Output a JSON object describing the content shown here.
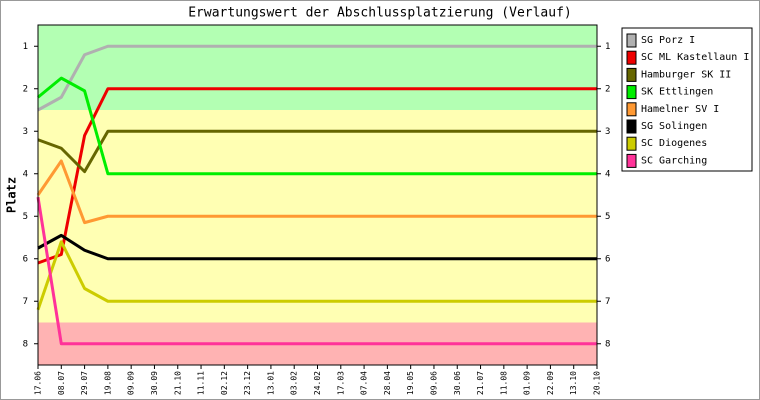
{
  "chart_data": {
    "type": "line",
    "title": "Erwartungswert der Abschlussplatzierung (Verlauf)",
    "y_label": "Platz",
    "categories": [
      "17.06",
      "08.07",
      "29.07",
      "19.08",
      "09.09",
      "30.09",
      "21.10",
      "11.11",
      "02.12",
      "23.12",
      "13.01",
      "03.02",
      "24.02",
      "17.03",
      "07.04",
      "28.04",
      "19.05",
      "09.06",
      "30.06",
      "21.07",
      "11.08",
      "01.09",
      "22.09",
      "13.10",
      "20.10"
    ],
    "ylim": [
      8.5,
      0.5
    ],
    "yticks": [
      1,
      2,
      3,
      4,
      5,
      6,
      7,
      8
    ],
    "zones": [
      {
        "from": 0.5,
        "to": 2.5,
        "color": "#b3ffb3"
      },
      {
        "from": 2.5,
        "to": 7.5,
        "color": "#ffffb3"
      },
      {
        "from": 7.5,
        "to": 8.5,
        "color": "#ffb3b3"
      }
    ],
    "series": [
      {
        "name": "SG Porz I",
        "color": "#b0b0b0",
        "values": [
          2.5,
          2.2,
          1.2,
          1,
          1,
          1,
          1,
          1,
          1,
          1,
          1,
          1,
          1,
          1,
          1,
          1,
          1,
          1,
          1,
          1,
          1,
          1,
          1,
          1,
          1
        ]
      },
      {
        "name": "SC ML Kastellaun I",
        "color": "#ee0000",
        "values": [
          6.1,
          5.9,
          3.1,
          2,
          2,
          2,
          2,
          2,
          2,
          2,
          2,
          2,
          2,
          2,
          2,
          2,
          2,
          2,
          2,
          2,
          2,
          2,
          2,
          2,
          2
        ]
      },
      {
        "name": "Hamburger SK II",
        "color": "#666600",
        "values": [
          3.2,
          3.4,
          3.95,
          3,
          3,
          3,
          3,
          3,
          3,
          3,
          3,
          3,
          3,
          3,
          3,
          3,
          3,
          3,
          3,
          3,
          3,
          3,
          3,
          3,
          3
        ]
      },
      {
        "name": "SK Ettlingen",
        "color": "#00ee00",
        "values": [
          2.2,
          1.75,
          2.05,
          4,
          4,
          4,
          4,
          4,
          4,
          4,
          4,
          4,
          4,
          4,
          4,
          4,
          4,
          4,
          4,
          4,
          4,
          4,
          4,
          4,
          4
        ]
      },
      {
        "name": "Hamelner SV I",
        "color": "#ff9933",
        "values": [
          4.5,
          3.7,
          5.15,
          5,
          5,
          5,
          5,
          5,
          5,
          5,
          5,
          5,
          5,
          5,
          5,
          5,
          5,
          5,
          5,
          5,
          5,
          5,
          5,
          5,
          5
        ]
      },
      {
        "name": "SG Solingen",
        "color": "#000000",
        "values": [
          5.75,
          5.45,
          5.8,
          6,
          6,
          6,
          6,
          6,
          6,
          6,
          6,
          6,
          6,
          6,
          6,
          6,
          6,
          6,
          6,
          6,
          6,
          6,
          6,
          6,
          6
        ]
      },
      {
        "name": "SC Diogenes",
        "color": "#cccc00",
        "values": [
          7.2,
          5.6,
          6.7,
          7,
          7,
          7,
          7,
          7,
          7,
          7,
          7,
          7,
          7,
          7,
          7,
          7,
          7,
          7,
          7,
          7,
          7,
          7,
          7,
          7,
          7
        ]
      },
      {
        "name": "SC Garching",
        "color": "#ff3399",
        "values": [
          4.55,
          8,
          8,
          8,
          8,
          8,
          8,
          8,
          8,
          8,
          8,
          8,
          8,
          8,
          8,
          8,
          8,
          8,
          8,
          8,
          8,
          8,
          8,
          8,
          8
        ]
      }
    ]
  }
}
